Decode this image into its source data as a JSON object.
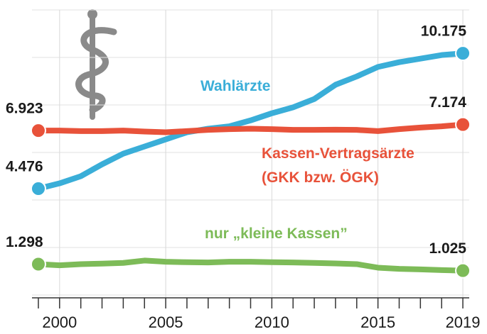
{
  "chart_data": {
    "type": "line",
    "x": [
      1999,
      2000,
      2001,
      2002,
      2003,
      2004,
      2005,
      2006,
      2007,
      2008,
      2009,
      2010,
      2011,
      2012,
      2013,
      2014,
      2015,
      2016,
      2017,
      2018,
      2019
    ],
    "series": [
      {
        "name": "Wahlärzte",
        "color": "#3aaed8",
        "values": [
          4.476,
          4.7,
          5.0,
          5.5,
          5.95,
          6.25,
          6.55,
          6.85,
          7.0,
          7.1,
          7.35,
          7.65,
          7.9,
          8.25,
          8.85,
          9.2,
          9.6,
          9.8,
          9.95,
          10.1,
          10.175
        ],
        "value_labels": [
          "4.476",
          null,
          null,
          null,
          null,
          null,
          null,
          null,
          null,
          null,
          null,
          null,
          null,
          null,
          null,
          null,
          null,
          null,
          null,
          null,
          "10.175"
        ]
      },
      {
        "name": "Kassen-Vertragsärzte (GKK bzw. ÖGK)",
        "color": "#e8523a",
        "values": [
          6.923,
          6.92,
          6.9,
          6.9,
          6.92,
          6.88,
          6.85,
          6.9,
          6.95,
          6.98,
          7.0,
          6.98,
          6.95,
          6.95,
          6.96,
          6.95,
          6.9,
          6.98,
          7.05,
          7.1,
          7.174
        ],
        "value_labels": [
          "6.923",
          null,
          null,
          null,
          null,
          null,
          null,
          null,
          null,
          null,
          null,
          null,
          null,
          null,
          null,
          null,
          null,
          null,
          null,
          null,
          "7.174"
        ]
      },
      {
        "name": "nur „kleine Kassen”",
        "color": "#7dbb58",
        "values": [
          1.298,
          1.25,
          1.3,
          1.32,
          1.35,
          1.45,
          1.4,
          1.38,
          1.37,
          1.4,
          1.4,
          1.38,
          1.37,
          1.35,
          1.33,
          1.3,
          1.15,
          1.1,
          1.08,
          1.05,
          1.025
        ],
        "value_labels": [
          "1.298",
          null,
          null,
          null,
          null,
          null,
          null,
          null,
          null,
          null,
          null,
          null,
          null,
          null,
          null,
          null,
          null,
          null,
          null,
          null,
          "1.025"
        ]
      }
    ],
    "xlim": [
      1998.7,
      2019.3
    ],
    "xticks": [
      2000,
      2005,
      2010,
      2015,
      2019
    ],
    "ylim": [
      0,
      12
    ],
    "yticks": [
      0,
      2,
      4,
      6,
      8,
      10,
      12
    ],
    "grid": true
  }
}
